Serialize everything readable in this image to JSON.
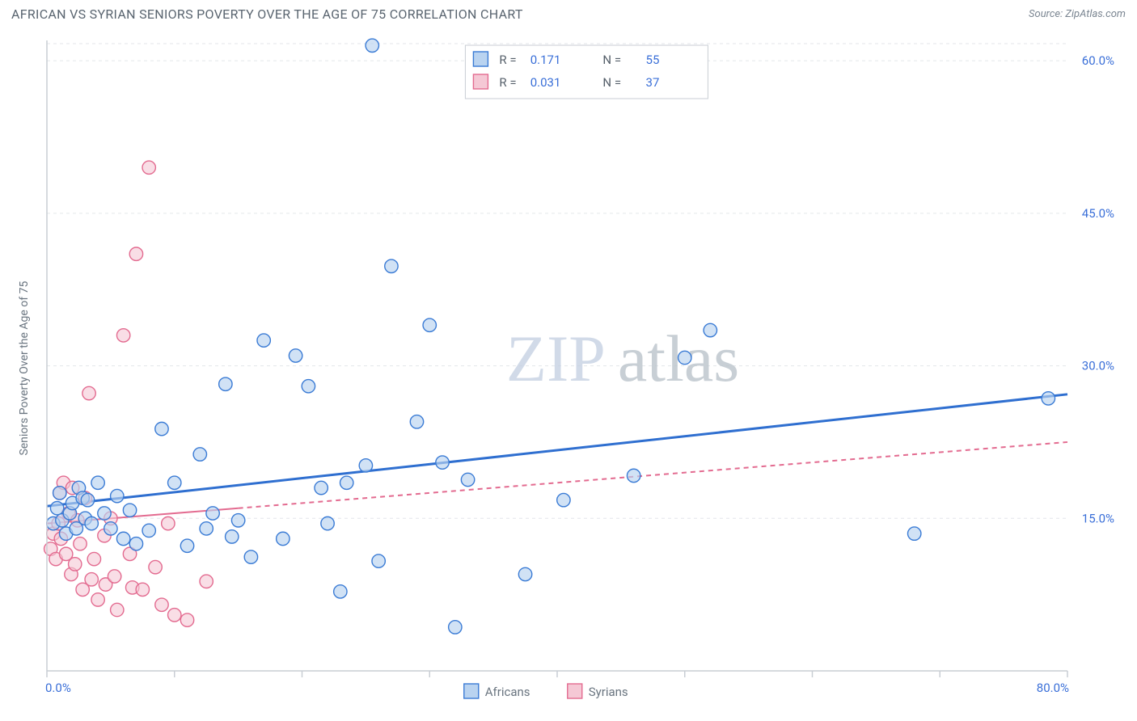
{
  "header": {
    "title": "AFRICAN VS SYRIAN SENIORS POVERTY OVER THE AGE OF 75 CORRELATION CHART",
    "source": "Source: ZipAtlas.com"
  },
  "watermark": {
    "zip": "ZIP",
    "atlas": "atlas"
  },
  "chart": {
    "type": "scatter",
    "background_color": "#ffffff",
    "grid_color": "#e3e6ea",
    "grid_dash": "4,4",
    "axis_line_color": "#c9ced4",
    "tick_color": "#c9ced4",
    "ylabel": "Seniors Poverty Over the Age of 75",
    "ylabel_fontsize": 14,
    "xlim": [
      0,
      80
    ],
    "ylim": [
      0,
      62
    ],
    "xticks": [
      0,
      10,
      20,
      30,
      40,
      50,
      60,
      70,
      80
    ],
    "xtick_labels": {
      "0": "0.0%",
      "80": "80.0%"
    },
    "yticks": [
      15,
      30,
      45,
      60
    ],
    "ytick_labels": {
      "15": "15.0%",
      "30": "30.0%",
      "45": "45.0%",
      "60": "60.0%"
    },
    "marker_radius": 8.2,
    "marker_stroke_width": 1.4,
    "series": [
      {
        "name": "Africans",
        "fill": "#b9d3f0",
        "stroke": "#3a7bd5",
        "fill_opacity": 0.65,
        "trend": {
          "color": "#2f6fd0",
          "width": 3,
          "dash": "none",
          "x1": 0,
          "y1": 16.2,
          "x2": 80,
          "y2": 27.2
        },
        "points": [
          [
            0.5,
            14.5
          ],
          [
            0.8,
            16.0
          ],
          [
            1.0,
            17.5
          ],
          [
            1.2,
            14.8
          ],
          [
            1.5,
            13.5
          ],
          [
            1.8,
            15.5
          ],
          [
            2.0,
            16.5
          ],
          [
            2.3,
            14.0
          ],
          [
            2.5,
            18.0
          ],
          [
            2.8,
            17.0
          ],
          [
            3.0,
            15.0
          ],
          [
            3.2,
            16.8
          ],
          [
            3.5,
            14.5
          ],
          [
            4.0,
            18.5
          ],
          [
            4.5,
            15.5
          ],
          [
            5.0,
            14.0
          ],
          [
            5.5,
            17.2
          ],
          [
            6.0,
            13.0
          ],
          [
            6.5,
            15.8
          ],
          [
            7.0,
            12.5
          ],
          [
            8.0,
            13.8
          ],
          [
            9.0,
            23.8
          ],
          [
            10.0,
            18.5
          ],
          [
            11.0,
            12.3
          ],
          [
            12.0,
            21.3
          ],
          [
            12.5,
            14.0
          ],
          [
            13.0,
            15.5
          ],
          [
            14.0,
            28.2
          ],
          [
            14.5,
            13.2
          ],
          [
            15.0,
            14.8
          ],
          [
            16.0,
            11.2
          ],
          [
            17.0,
            32.5
          ],
          [
            18.5,
            13.0
          ],
          [
            19.5,
            31.0
          ],
          [
            20.5,
            28.0
          ],
          [
            21.5,
            18.0
          ],
          [
            22.0,
            14.5
          ],
          [
            23.0,
            7.8
          ],
          [
            23.5,
            18.5
          ],
          [
            25.0,
            20.2
          ],
          [
            25.5,
            61.5
          ],
          [
            26.0,
            10.8
          ],
          [
            27.0,
            39.8
          ],
          [
            29.0,
            24.5
          ],
          [
            30.0,
            34.0
          ],
          [
            31.0,
            20.5
          ],
          [
            32.0,
            4.3
          ],
          [
            33.0,
            18.8
          ],
          [
            37.5,
            9.5
          ],
          [
            40.5,
            16.8
          ],
          [
            46.0,
            19.2
          ],
          [
            50.0,
            30.8
          ],
          [
            52.0,
            33.5
          ],
          [
            68.0,
            13.5
          ],
          [
            78.5,
            26.8
          ]
        ]
      },
      {
        "name": "Syrians",
        "fill": "#f5c8d5",
        "stroke": "#e36b90",
        "fill_opacity": 0.6,
        "trend": {
          "color": "#e36b90",
          "width": 2,
          "dash_solid_until": 15,
          "dash": "6,5",
          "x1": 0,
          "y1": 14.5,
          "x2": 80,
          "y2": 22.5
        },
        "points": [
          [
            0.3,
            12.0
          ],
          [
            0.5,
            13.5
          ],
          [
            0.7,
            11.0
          ],
          [
            0.9,
            14.5
          ],
          [
            1.0,
            17.5
          ],
          [
            1.1,
            13.0
          ],
          [
            1.3,
            18.5
          ],
          [
            1.5,
            11.5
          ],
          [
            1.7,
            15.5
          ],
          [
            1.9,
            9.5
          ],
          [
            2.0,
            18.0
          ],
          [
            2.2,
            10.5
          ],
          [
            2.4,
            14.8
          ],
          [
            2.6,
            12.5
          ],
          [
            2.8,
            8.0
          ],
          [
            3.0,
            17.0
          ],
          [
            3.3,
            27.3
          ],
          [
            3.5,
            9.0
          ],
          [
            3.7,
            11.0
          ],
          [
            4.0,
            7.0
          ],
          [
            4.5,
            13.3
          ],
          [
            4.6,
            8.5
          ],
          [
            5.0,
            15.0
          ],
          [
            5.3,
            9.3
          ],
          [
            5.5,
            6.0
          ],
          [
            6.0,
            33.0
          ],
          [
            6.5,
            11.5
          ],
          [
            6.7,
            8.2
          ],
          [
            7.0,
            41.0
          ],
          [
            7.5,
            8.0
          ],
          [
            8.0,
            49.5
          ],
          [
            8.5,
            10.2
          ],
          [
            9.0,
            6.5
          ],
          [
            9.5,
            14.5
          ],
          [
            10.0,
            5.5
          ],
          [
            11.0,
            5.0
          ],
          [
            12.5,
            8.8
          ]
        ]
      }
    ],
    "top_legend": {
      "box_stroke": "#c9ced4",
      "box_fill": "#ffffff",
      "items": [
        {
          "swatch_fill": "#b9d3f0",
          "swatch_stroke": "#3a7bd5",
          "r_label": "R =",
          "r_val": "0.171",
          "n_label": "N =",
          "n_val": "55"
        },
        {
          "swatch_fill": "#f5c8d5",
          "swatch_stroke": "#e36b90",
          "r_label": "R =",
          "r_val": "0.031",
          "n_label": "N =",
          "n_val": "37"
        }
      ]
    },
    "bottom_legend": {
      "items": [
        {
          "swatch_fill": "#b9d3f0",
          "swatch_stroke": "#3a7bd5",
          "label": "Africans"
        },
        {
          "swatch_fill": "#f5c8d5",
          "swatch_stroke": "#e36b90",
          "label": "Syrians"
        }
      ]
    }
  }
}
